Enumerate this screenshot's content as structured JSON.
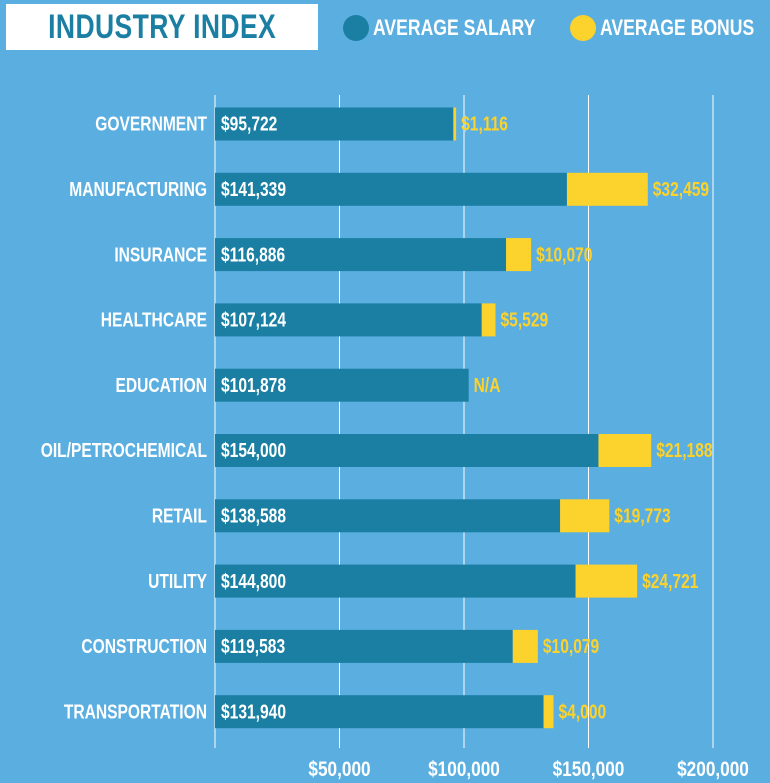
{
  "title": "INDUSTRY INDEX",
  "legend": {
    "salary_label": "AVERAGE SALARY",
    "bonus_label": "AVERAGE BONUS"
  },
  "colors": {
    "background": "#5aaee0",
    "salary": "#1a7fa2",
    "bonus": "#fcd22c",
    "category_text": "#ffffff",
    "salary_text": "#ffffff",
    "bonus_text": "#fcd22c",
    "title": "#1a7fa2"
  },
  "chart_data": {
    "type": "bar",
    "orientation": "horizontal",
    "stacked": true,
    "categories": [
      "GOVERNMENT",
      "MANUFACTURING",
      "INSURANCE",
      "HEALTHCARE",
      "EDUCATION",
      "OIL/PETROCHEMICAL",
      "RETAIL",
      "UTILITY",
      "CONSTRUCTION",
      "TRANSPORTATION"
    ],
    "series": [
      {
        "name": "AVERAGE SALARY",
        "values": [
          95722,
          141339,
          116886,
          107124,
          101878,
          154000,
          138588,
          144800,
          119583,
          131940
        ],
        "labels": [
          "$95,722",
          "$141,339",
          "$116,886",
          "$107,124",
          "$101,878",
          "$154,000",
          "$138,588",
          "$144,800",
          "$119,583",
          "$131,940"
        ]
      },
      {
        "name": "AVERAGE BONUS",
        "values": [
          1116,
          32459,
          10070,
          5529,
          null,
          21188,
          19773,
          24721,
          10079,
          4000
        ],
        "labels": [
          "$1,116",
          "$32,459",
          "$10,070",
          "$5,529",
          "N/A",
          "$21,188",
          "$19,773",
          "$24,721",
          "$10,079",
          "$4,000"
        ]
      }
    ],
    "x_ticks": [
      50000,
      100000,
      150000,
      200000
    ],
    "x_tick_labels": [
      "$50,000",
      "$100,000",
      "$150,000",
      "$200,000"
    ],
    "xlim": [
      0,
      200000
    ],
    "grid": true,
    "legend_position": "top-right"
  }
}
